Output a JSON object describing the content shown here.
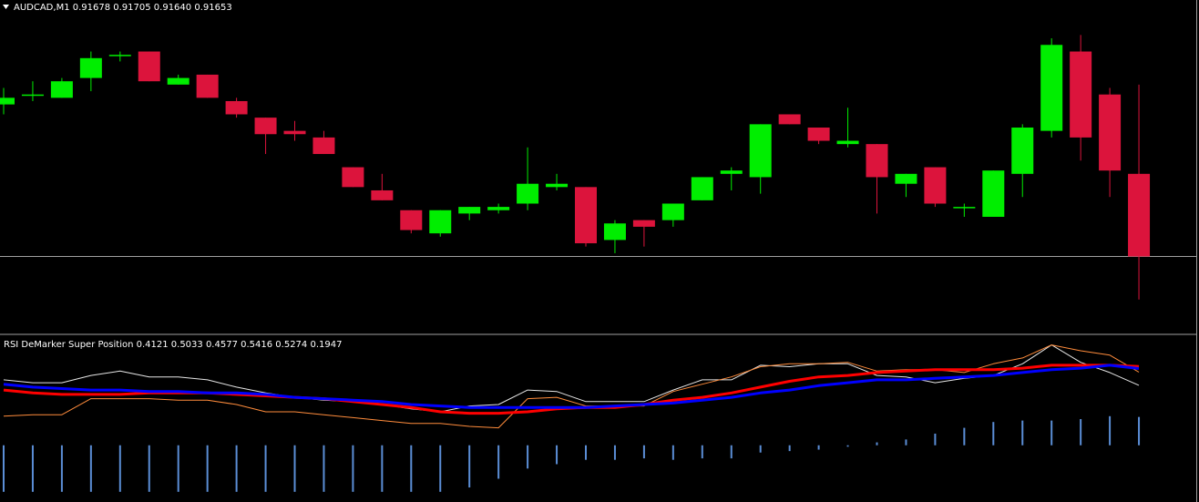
{
  "chart_data": [
    {
      "type": "candlestick",
      "title": "AUDCAD,M1  0.91678 0.91705 0.91640 0.91653",
      "up_color": "#00ee00",
      "down_color": "#dc143c",
      "ylim": [
        0.9163,
        0.91727
      ],
      "price_line": true,
      "open": [
        0.91699,
        0.91702,
        0.91701,
        0.91707,
        0.91714,
        0.91715,
        0.91705,
        0.91708,
        0.917,
        0.91695,
        0.91691,
        0.91689,
        0.9168,
        0.91673,
        0.91667,
        0.9166,
        0.91666,
        0.91667,
        0.91669,
        0.91674,
        0.91674,
        0.91658,
        0.91664,
        0.91664,
        0.9167,
        0.91678,
        0.91677,
        0.91696,
        0.91692,
        0.91687,
        0.91687,
        0.91675,
        0.9168,
        0.91668,
        0.91665,
        0.91678,
        0.91691,
        0.91715,
        0.91702,
        0.91678
      ],
      "high": [
        0.91704,
        0.91706,
        0.91707,
        0.91715,
        0.91715,
        0.91715,
        0.91708,
        0.91708,
        0.91701,
        0.91695,
        0.91694,
        0.91691,
        0.9168,
        0.91678,
        0.91667,
        0.91667,
        0.91668,
        0.91669,
        0.91686,
        0.91678,
        0.91674,
        0.91664,
        0.91664,
        0.91669,
        0.91677,
        0.9168,
        0.91693,
        0.91696,
        0.91692,
        0.91698,
        0.91687,
        0.91678,
        0.9168,
        0.91669,
        0.91679,
        0.91693,
        0.91719,
        0.9172,
        0.91704,
        0.91705
      ],
      "low": [
        0.91696,
        0.917,
        0.91701,
        0.91703,
        0.91712,
        0.91706,
        0.91705,
        0.91701,
        0.91695,
        0.91684,
        0.91688,
        0.91684,
        0.91674,
        0.9167,
        0.9166,
        0.91659,
        0.91664,
        0.91666,
        0.91667,
        0.91673,
        0.91656,
        0.91654,
        0.91656,
        0.91662,
        0.9167,
        0.91673,
        0.91672,
        0.91693,
        0.91687,
        0.91686,
        0.91666,
        0.91671,
        0.91668,
        0.91665,
        0.91665,
        0.91671,
        0.91689,
        0.91682,
        0.91671,
        0.9164
      ],
      "close": [
        0.91701,
        0.91702,
        0.91706,
        0.91713,
        0.91714,
        0.91706,
        0.91707,
        0.91701,
        0.91696,
        0.9169,
        0.9169,
        0.91684,
        0.91674,
        0.9167,
        0.91661,
        0.91667,
        0.91668,
        0.91668,
        0.91675,
        0.91675,
        0.91657,
        0.91663,
        0.91662,
        0.91669,
        0.91677,
        0.91679,
        0.91693,
        0.91693,
        0.91688,
        0.91688,
        0.91677,
        0.91678,
        0.91669,
        0.91668,
        0.91679,
        0.91692,
        0.91717,
        0.91689,
        0.91679,
        0.91653
      ]
    },
    {
      "type": "line",
      "title": "RSI DeMarker Super Position 0.4121 0.5033 0.4577 0.5416 0.5274 0.1947",
      "ylim": [
        -0.39,
        0.75
      ],
      "series": [
        {
          "color": "#e6e6e6",
          "width": 1,
          "values": [
            0.45,
            0.43,
            0.43,
            0.48,
            0.51,
            0.47,
            0.47,
            0.45,
            0.4,
            0.36,
            0.33,
            0.31,
            0.3,
            0.28,
            0.25,
            0.23,
            0.27,
            0.28,
            0.38,
            0.37,
            0.3,
            0.3,
            0.3,
            0.38,
            0.45,
            0.45,
            0.55,
            0.54,
            0.56,
            0.56,
            0.48,
            0.47,
            0.43,
            0.46,
            0.48,
            0.56,
            0.69,
            0.57,
            0.5,
            0.4121
          ]
        },
        {
          "color": "#ff8c3c",
          "width": 1,
          "values": [
            0.2,
            0.21,
            0.21,
            0.32,
            0.32,
            0.32,
            0.31,
            0.31,
            0.28,
            0.23,
            0.23,
            0.21,
            0.19,
            0.17,
            0.15,
            0.15,
            0.13,
            0.12,
            0.32,
            0.33,
            0.27,
            0.27,
            0.27,
            0.37,
            0.42,
            0.47,
            0.54,
            0.56,
            0.56,
            0.57,
            0.51,
            0.52,
            0.52,
            0.5,
            0.56,
            0.6,
            0.69,
            0.65,
            0.62,
            0.5033
          ]
        },
        {
          "color": "#ff0000",
          "width": 3,
          "values": [
            0.38,
            0.36,
            0.35,
            0.35,
            0.35,
            0.36,
            0.36,
            0.36,
            0.35,
            0.34,
            0.33,
            0.32,
            0.3,
            0.28,
            0.26,
            0.23,
            0.22,
            0.22,
            0.23,
            0.25,
            0.26,
            0.26,
            0.28,
            0.31,
            0.33,
            0.36,
            0.4,
            0.44,
            0.47,
            0.48,
            0.5,
            0.51,
            0.52,
            0.52,
            0.52,
            0.53,
            0.55,
            0.55,
            0.55,
            0.5416
          ]
        },
        {
          "color": "#0000ff",
          "width": 3,
          "values": [
            0.42,
            0.4,
            0.39,
            0.38,
            0.38,
            0.37,
            0.37,
            0.36,
            0.36,
            0.35,
            0.33,
            0.32,
            0.31,
            0.3,
            0.28,
            0.27,
            0.26,
            0.26,
            0.26,
            0.26,
            0.26,
            0.27,
            0.28,
            0.29,
            0.31,
            0.33,
            0.36,
            0.38,
            0.41,
            0.43,
            0.45,
            0.45,
            0.46,
            0.47,
            0.48,
            0.5,
            0.52,
            0.53,
            0.55,
            0.5274
          ]
        },
        {
          "type": "bar",
          "color": "#5b8ed6",
          "values": [
            -0.32,
            -0.32,
            -0.32,
            -0.32,
            -0.32,
            -0.32,
            -0.32,
            -0.32,
            -0.32,
            -0.32,
            -0.32,
            -0.32,
            -0.32,
            -0.32,
            -0.32,
            -0.32,
            -0.29,
            -0.23,
            -0.16,
            -0.13,
            -0.1,
            -0.1,
            -0.09,
            -0.1,
            -0.09,
            -0.09,
            -0.05,
            -0.04,
            -0.03,
            -0.01,
            0.02,
            0.04,
            0.08,
            0.12,
            0.16,
            0.17,
            0.17,
            0.18,
            0.2,
            0.1947
          ]
        }
      ]
    }
  ]
}
